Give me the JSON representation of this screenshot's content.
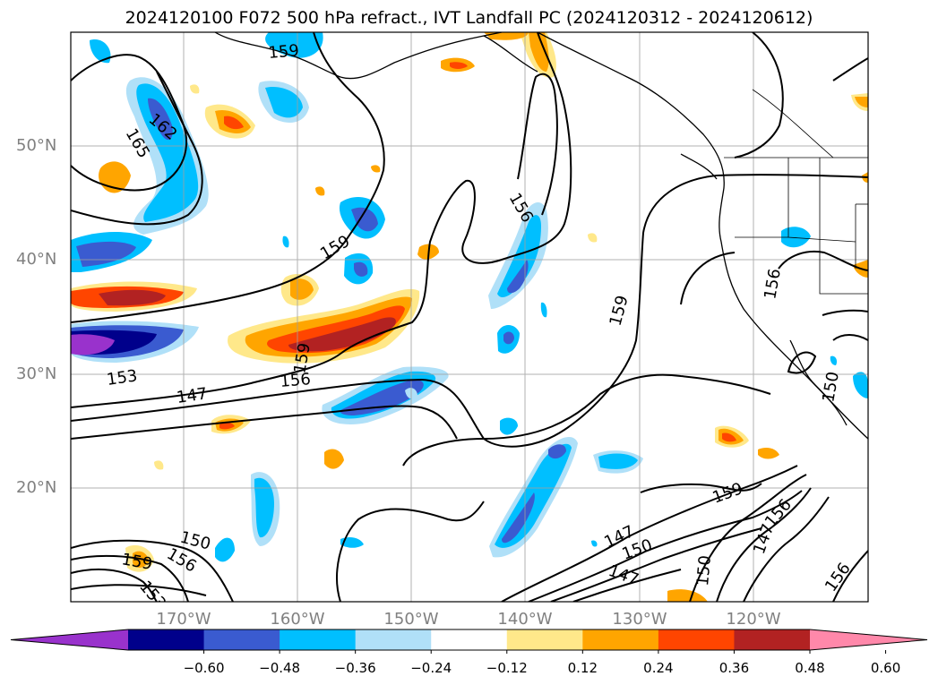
{
  "title": "2024120100 F072 500 hPa refract., IVT Landfall PC (2024120312 - 2024120612)",
  "lat_labels": [
    "50°N",
    "40°N",
    "30°N",
    "20°N"
  ],
  "lon_labels": [
    "170°W",
    "160°W",
    "150°W",
    "140°W",
    "130°W",
    "120°W"
  ],
  "contour_labels": [
    "159",
    "162",
    "165",
    "156",
    "159",
    "156",
    "159",
    "159",
    "153",
    "156",
    "147",
    "150",
    "159",
    "156",
    "147",
    "150",
    "156",
    "159",
    "153",
    "147",
    "150",
    "147",
    "150",
    "156"
  ],
  "colorbar": {
    "ticks": [
      "−0.60",
      "−0.48",
      "−0.36",
      "−0.24",
      "−0.12",
      "0.12",
      "0.24",
      "0.36",
      "0.48",
      "0.60"
    ],
    "colors": [
      "#9932cc",
      "#00008b",
      "#3a5bd0",
      "#00bfff",
      "#b0e0f8",
      "#ffffff",
      "#ffe88a",
      "#ffa500",
      "#ff4500",
      "#b22222",
      "#ff88aa"
    ]
  }
}
